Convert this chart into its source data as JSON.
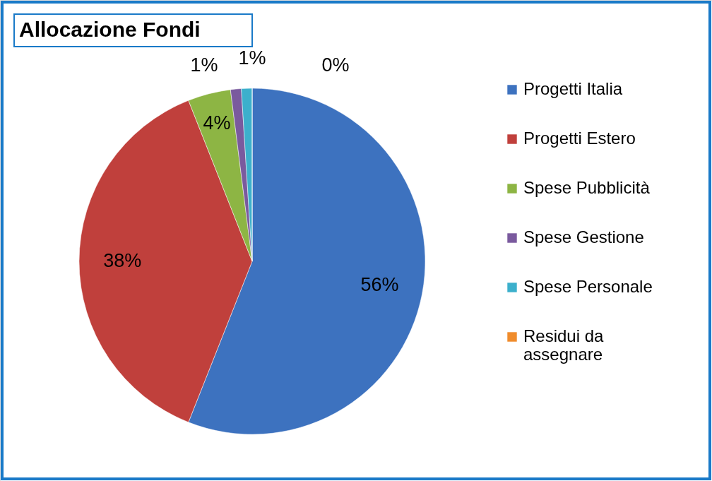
{
  "chart_data": {
    "type": "pie",
    "title": "Allocazione Fondi",
    "categories": [
      "Progetti Italia",
      "Progetti Estero",
      "Spese Pubblicità",
      "Spese Gestione",
      "Spese Personale",
      "Residui da assegnare"
    ],
    "values": [
      56,
      38,
      4,
      1,
      1,
      0
    ],
    "colors": [
      "#3d72bf",
      "#c0403c",
      "#8db544",
      "#7a5a9e",
      "#3cb0cc",
      "#f08c2c"
    ],
    "value_labels": [
      "56%",
      "38%",
      "4%",
      "1%",
      "1%",
      "0%"
    ],
    "legend": "right"
  }
}
